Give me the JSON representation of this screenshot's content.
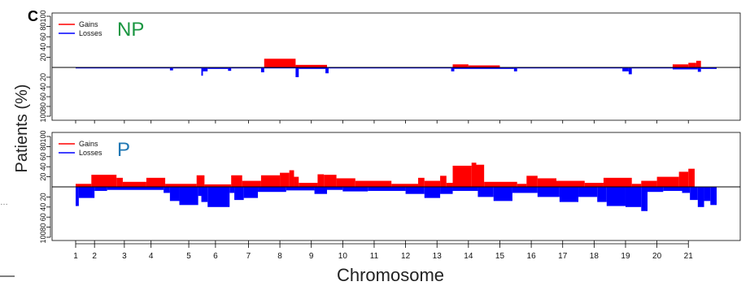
{
  "panel_label": "C",
  "colors": {
    "gains": "#ff0000",
    "losses": "#0000ff",
    "np_label": "#1a9641",
    "p_label": "#1f78b4",
    "axis": "#000000"
  },
  "chart_data": {
    "type": "area",
    "xlabel": "Chromosome",
    "ylabel": "Patients (%)",
    "chromosomes": [
      {
        "label": "1",
        "start": 1.0,
        "end": 1.6
      },
      {
        "label": "2",
        "start": 1.6,
        "end": 2.55
      },
      {
        "label": "3",
        "start": 2.55,
        "end": 3.4
      },
      {
        "label": "4",
        "start": 3.4,
        "end": 4.6
      },
      {
        "label": "5",
        "start": 4.6,
        "end": 5.45
      },
      {
        "label": "6",
        "start": 5.45,
        "end": 6.5
      },
      {
        "label": "7",
        "start": 6.5,
        "end": 7.5
      },
      {
        "label": "8",
        "start": 7.5,
        "end": 8.5
      },
      {
        "label": "9",
        "start": 8.5,
        "end": 9.5
      },
      {
        "label": "10",
        "start": 9.5,
        "end": 10.5
      },
      {
        "label": "11",
        "start": 10.5,
        "end": 11.5
      },
      {
        "label": "12",
        "start": 11.5,
        "end": 12.5
      },
      {
        "label": "13",
        "start": 12.5,
        "end": 13.5
      },
      {
        "label": "14",
        "start": 13.5,
        "end": 14.5
      },
      {
        "label": "15",
        "start": 14.5,
        "end": 15.5
      },
      {
        "label": "16",
        "start": 15.5,
        "end": 16.5
      },
      {
        "label": "17",
        "start": 16.5,
        "end": 17.5
      },
      {
        "label": "18",
        "start": 17.5,
        "end": 18.5
      },
      {
        "label": "19",
        "start": 18.5,
        "end": 19.5
      },
      {
        "label": "20",
        "start": 19.5,
        "end": 20.5
      },
      {
        "label": "21",
        "start": 20.5,
        "end": 21.4
      }
    ],
    "xticks": [
      "1",
      "2",
      "3",
      "4",
      "5",
      "6",
      "7",
      "8",
      "9",
      "10",
      "11",
      "12",
      "13",
      "14",
      "15",
      "16",
      "17",
      "18",
      "19",
      "20",
      "21"
    ],
    "yticks_gain": [
      20,
      40,
      60,
      80,
      100
    ],
    "yticks_loss": [
      20,
      40,
      60,
      80,
      100
    ],
    "panels": [
      {
        "name": "NP",
        "legend": [
          "Gains",
          "Losses"
        ],
        "gains": [
          {
            "x0": 1.0,
            "x1": 7.0,
            "v": 0
          },
          {
            "x0": 7.0,
            "x1": 8.0,
            "v": 17
          },
          {
            "x0": 8.0,
            "x1": 9.0,
            "v": 5
          },
          {
            "x0": 9.0,
            "x1": 13.0,
            "v": 0
          },
          {
            "x0": 13.0,
            "x1": 13.5,
            "v": 6
          },
          {
            "x0": 13.5,
            "x1": 14.5,
            "v": 4
          },
          {
            "x0": 14.5,
            "x1": 20.0,
            "v": 0
          },
          {
            "x0": 20.0,
            "x1": 20.5,
            "v": 6
          },
          {
            "x0": 20.5,
            "x1": 20.75,
            "v": 9
          },
          {
            "x0": 20.75,
            "x1": 20.9,
            "v": 13
          },
          {
            "x0": 20.9,
            "x1": 21.4,
            "v": 0
          }
        ],
        "losses": [
          {
            "x0": 1.0,
            "x1": 4.0,
            "v": 2
          },
          {
            "x0": 4.0,
            "x1": 4.1,
            "v": 6
          },
          {
            "x0": 4.1,
            "x1": 5.0,
            "v": 2
          },
          {
            "x0": 5.0,
            "x1": 5.05,
            "v": 17
          },
          {
            "x0": 5.05,
            "x1": 5.2,
            "v": 8
          },
          {
            "x0": 5.2,
            "x1": 5.85,
            "v": 3
          },
          {
            "x0": 5.85,
            "x1": 5.95,
            "v": 7
          },
          {
            "x0": 5.95,
            "x1": 6.9,
            "v": 2
          },
          {
            "x0": 6.9,
            "x1": 7.0,
            "v": 10
          },
          {
            "x0": 7.0,
            "x1": 8.0,
            "v": 2
          },
          {
            "x0": 8.0,
            "x1": 8.1,
            "v": 20
          },
          {
            "x0": 8.1,
            "x1": 8.95,
            "v": 3
          },
          {
            "x0": 8.95,
            "x1": 9.05,
            "v": 12
          },
          {
            "x0": 9.05,
            "x1": 12.95,
            "v": 2
          },
          {
            "x0": 12.95,
            "x1": 13.05,
            "v": 8
          },
          {
            "x0": 13.05,
            "x1": 14.95,
            "v": 3
          },
          {
            "x0": 14.95,
            "x1": 15.05,
            "v": 8
          },
          {
            "x0": 15.05,
            "x1": 18.4,
            "v": 2
          },
          {
            "x0": 18.4,
            "x1": 18.6,
            "v": 8
          },
          {
            "x0": 18.6,
            "x1": 18.7,
            "v": 14
          },
          {
            "x0": 18.7,
            "x1": 20.0,
            "v": 2
          },
          {
            "x0": 20.0,
            "x1": 20.8,
            "v": 4
          },
          {
            "x0": 20.8,
            "x1": 20.9,
            "v": 9
          },
          {
            "x0": 20.9,
            "x1": 21.4,
            "v": 3
          }
        ]
      },
      {
        "name": "P",
        "legend": [
          "Gains",
          "Losses"
        ],
        "gains": [
          {
            "x0": 1.0,
            "x1": 1.5,
            "v": 6
          },
          {
            "x0": 1.5,
            "x1": 2.3,
            "v": 24
          },
          {
            "x0": 2.3,
            "x1": 2.5,
            "v": 18
          },
          {
            "x0": 2.5,
            "x1": 3.25,
            "v": 10
          },
          {
            "x0": 3.25,
            "x1": 3.85,
            "v": 18
          },
          {
            "x0": 3.85,
            "x1": 4.85,
            "v": 6
          },
          {
            "x0": 4.85,
            "x1": 5.1,
            "v": 23
          },
          {
            "x0": 5.1,
            "x1": 5.95,
            "v": 5
          },
          {
            "x0": 5.95,
            "x1": 6.3,
            "v": 23
          },
          {
            "x0": 6.3,
            "x1": 6.9,
            "v": 12
          },
          {
            "x0": 6.9,
            "x1": 7.5,
            "v": 23
          },
          {
            "x0": 7.5,
            "x1": 7.8,
            "v": 28
          },
          {
            "x0": 7.8,
            "x1": 7.95,
            "v": 33
          },
          {
            "x0": 7.95,
            "x1": 8.1,
            "v": 20
          },
          {
            "x0": 8.1,
            "x1": 8.7,
            "v": 8
          },
          {
            "x0": 8.7,
            "x1": 8.9,
            "v": 25
          },
          {
            "x0": 8.9,
            "x1": 9.3,
            "v": 24
          },
          {
            "x0": 9.3,
            "x1": 9.9,
            "v": 17
          },
          {
            "x0": 9.9,
            "x1": 11.05,
            "v": 12
          },
          {
            "x0": 11.05,
            "x1": 11.9,
            "v": 6
          },
          {
            "x0": 11.9,
            "x1": 12.1,
            "v": 18
          },
          {
            "x0": 12.1,
            "x1": 12.6,
            "v": 12
          },
          {
            "x0": 12.6,
            "x1": 12.8,
            "v": 22
          },
          {
            "x0": 12.8,
            "x1": 13.0,
            "v": 8
          },
          {
            "x0": 13.0,
            "x1": 13.6,
            "v": 42
          },
          {
            "x0": 13.6,
            "x1": 13.75,
            "v": 48
          },
          {
            "x0": 13.75,
            "x1": 14.0,
            "v": 44
          },
          {
            "x0": 14.0,
            "x1": 15.05,
            "v": 10
          },
          {
            "x0": 15.05,
            "x1": 15.35,
            "v": 6
          },
          {
            "x0": 15.35,
            "x1": 15.7,
            "v": 22
          },
          {
            "x0": 15.7,
            "x1": 16.3,
            "v": 17
          },
          {
            "x0": 16.3,
            "x1": 17.2,
            "v": 12
          },
          {
            "x0": 17.2,
            "x1": 17.8,
            "v": 8
          },
          {
            "x0": 17.8,
            "x1": 18.7,
            "v": 18
          },
          {
            "x0": 18.7,
            "x1": 19.0,
            "v": 6
          },
          {
            "x0": 19.0,
            "x1": 19.5,
            "v": 12
          },
          {
            "x0": 19.5,
            "x1": 20.2,
            "v": 20
          },
          {
            "x0": 20.2,
            "x1": 20.5,
            "v": 30
          },
          {
            "x0": 20.5,
            "x1": 20.7,
            "v": 36
          },
          {
            "x0": 20.7,
            "x1": 21.4,
            "v": 0
          }
        ],
        "losses": [
          {
            "x0": 1.0,
            "x1": 1.1,
            "v": 38
          },
          {
            "x0": 1.1,
            "x1": 1.6,
            "v": 22
          },
          {
            "x0": 1.6,
            "x1": 2.0,
            "v": 8
          },
          {
            "x0": 2.0,
            "x1": 3.8,
            "v": 6
          },
          {
            "x0": 3.8,
            "x1": 4.0,
            "v": 12
          },
          {
            "x0": 4.0,
            "x1": 4.3,
            "v": 28
          },
          {
            "x0": 4.3,
            "x1": 4.9,
            "v": 36
          },
          {
            "x0": 4.9,
            "x1": 5.0,
            "v": 18
          },
          {
            "x0": 5.0,
            "x1": 5.2,
            "v": 30
          },
          {
            "x0": 5.2,
            "x1": 5.9,
            "v": 40
          },
          {
            "x0": 5.9,
            "x1": 6.05,
            "v": 12
          },
          {
            "x0": 6.05,
            "x1": 6.35,
            "v": 26
          },
          {
            "x0": 6.35,
            "x1": 6.8,
            "v": 22
          },
          {
            "x0": 6.8,
            "x1": 7.7,
            "v": 10
          },
          {
            "x0": 7.7,
            "x1": 8.6,
            "v": 7
          },
          {
            "x0": 8.6,
            "x1": 9.0,
            "v": 14
          },
          {
            "x0": 9.0,
            "x1": 9.5,
            "v": 6
          },
          {
            "x0": 9.5,
            "x1": 10.3,
            "v": 9
          },
          {
            "x0": 10.3,
            "x1": 11.5,
            "v": 8
          },
          {
            "x0": 11.5,
            "x1": 12.1,
            "v": 14
          },
          {
            "x0": 12.1,
            "x1": 12.6,
            "v": 22
          },
          {
            "x0": 12.6,
            "x1": 13.0,
            "v": 14
          },
          {
            "x0": 13.0,
            "x1": 13.8,
            "v": 8
          },
          {
            "x0": 13.8,
            "x1": 14.3,
            "v": 20
          },
          {
            "x0": 14.3,
            "x1": 14.9,
            "v": 28
          },
          {
            "x0": 14.9,
            "x1": 15.7,
            "v": 12
          },
          {
            "x0": 15.7,
            "x1": 16.4,
            "v": 20
          },
          {
            "x0": 16.4,
            "x1": 17.0,
            "v": 30
          },
          {
            "x0": 17.0,
            "x1": 17.6,
            "v": 20
          },
          {
            "x0": 17.6,
            "x1": 17.9,
            "v": 30
          },
          {
            "x0": 17.9,
            "x1": 18.5,
            "v": 38
          },
          {
            "x0": 18.5,
            "x1": 19.0,
            "v": 40
          },
          {
            "x0": 19.0,
            "x1": 19.2,
            "v": 48
          },
          {
            "x0": 19.2,
            "x1": 19.7,
            "v": 10
          },
          {
            "x0": 19.7,
            "x1": 20.3,
            "v": 8
          },
          {
            "x0": 20.3,
            "x1": 20.55,
            "v": 12
          },
          {
            "x0": 20.55,
            "x1": 20.8,
            "v": 26
          },
          {
            "x0": 20.8,
            "x1": 21.0,
            "v": 40
          },
          {
            "x0": 21.0,
            "x1": 21.2,
            "v": 28
          },
          {
            "x0": 21.2,
            "x1": 21.4,
            "v": 36
          }
        ]
      }
    ]
  }
}
